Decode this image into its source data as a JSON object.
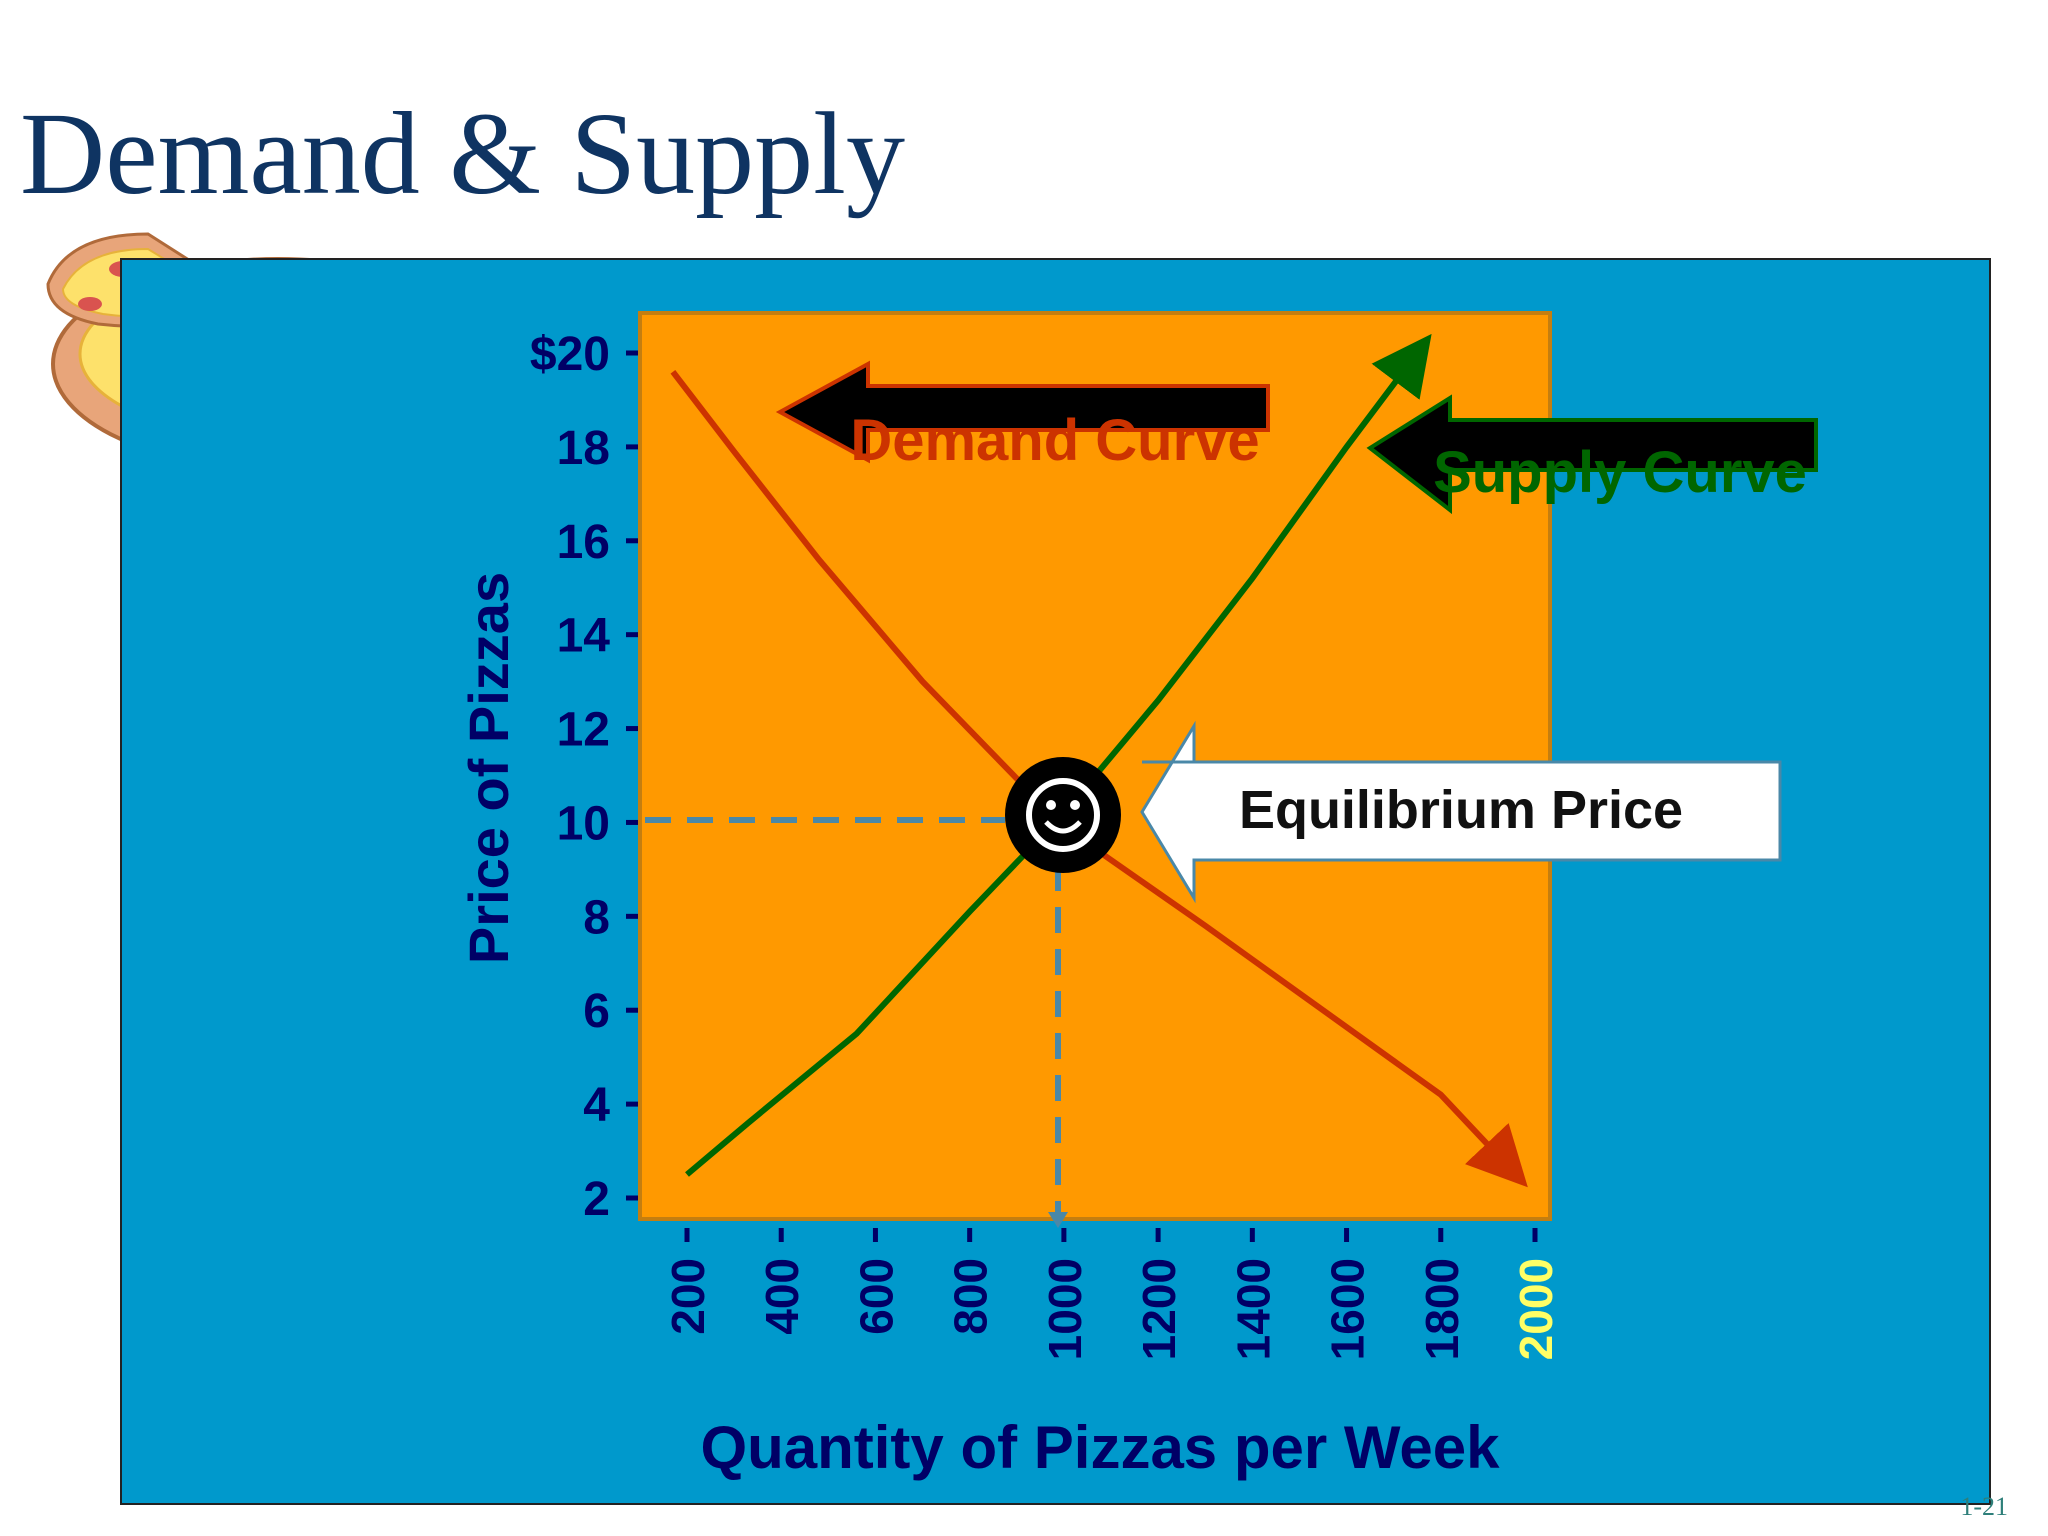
{
  "slide": {
    "title": "Demand & Supply",
    "slide_number": "1-21"
  },
  "colors": {
    "title": "#0f3462",
    "panel_background": "#0099cc",
    "plot_background": "#ff9900",
    "demand": "#cc3300",
    "supply": "#006600",
    "axis_text": "#000066",
    "highlight_tick": "#ffff66",
    "guide": "#4a88a8"
  },
  "chart_data": {
    "type": "line",
    "title": "",
    "xlabel": "Quantity of Pizzas per Week",
    "ylabel": "Price of Pizzas",
    "xlim": [
      200,
      2000
    ],
    "ylim": [
      2,
      20
    ],
    "x_ticks": [
      200,
      400,
      600,
      800,
      1000,
      1200,
      1400,
      1600,
      1800,
      2000
    ],
    "x_tick_labels": [
      "200",
      "400",
      "600",
      "800",
      "1000",
      "1200",
      "1400",
      "1600",
      "1800",
      "2000"
    ],
    "highlighted_x_tick": "2000",
    "y_ticks": [
      2,
      4,
      6,
      8,
      10,
      12,
      14,
      16,
      18,
      20
    ],
    "y_tick_labels": [
      "2",
      "4",
      "6",
      "8",
      "10",
      "12",
      "14",
      "16",
      "18",
      "$20"
    ],
    "grid": false,
    "series": [
      {
        "name": "Demand Curve",
        "x": [
          170,
          300,
          480,
          700,
          1000,
          1300,
          1550,
          1800,
          1950
        ],
        "y": [
          19.6,
          17.9,
          15.6,
          13.0,
          9.9,
          7.8,
          6.0,
          4.2,
          2.6
        ]
      },
      {
        "name": "Supply Curve",
        "x": [
          200,
          330,
          560,
          800,
          1000,
          1200,
          1400,
          1600,
          1750
        ],
        "y": [
          2.5,
          3.6,
          5.5,
          8.1,
          10.2,
          12.6,
          15.2,
          18.0,
          20.0
        ]
      }
    ],
    "annotations": [
      {
        "text": "Equilibrium Price",
        "x": 1000,
        "y": 10.1
      }
    ]
  }
}
